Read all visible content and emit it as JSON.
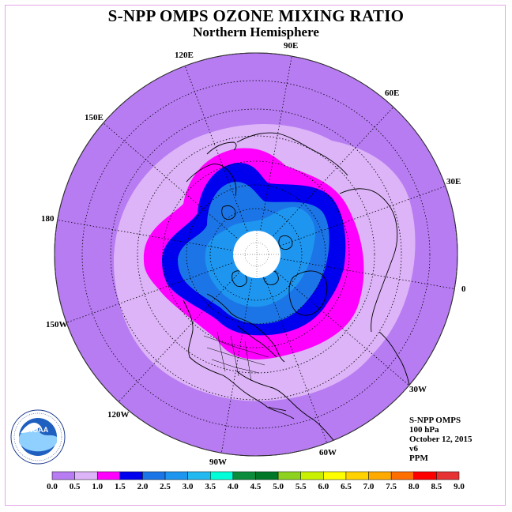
{
  "title": "S-NPP OMPS OZONE MIXING RATIO",
  "subtitle": "Northern Hemisphere",
  "longitude_labels": [
    "120E",
    "90E",
    "60E",
    "150E",
    "30E",
    "180",
    "0",
    "150W",
    "30W",
    "120W",
    "60W",
    "90W"
  ],
  "info": {
    "instrument": "S-NPP OMPS",
    "level": "100 hPa",
    "date": "October 12, 2015",
    "version": "v6",
    "units": "PPM"
  },
  "colorbar": {
    "ticks": [
      "0.0",
      "0.5",
      "1.0",
      "1.5",
      "2.0",
      "2.5",
      "3.0",
      "3.5",
      "4.0",
      "4.5",
      "5.0",
      "5.5",
      "6.0",
      "6.5",
      "7.0",
      "7.5",
      "8.0",
      "8.5",
      "9.0"
    ],
    "colors": [
      "#b77cf2",
      "#dcb4f7",
      "#ff00ff",
      "#0000ee",
      "#1c75e6",
      "#1e96f0",
      "#22b8f0",
      "#00ffd8",
      "#0a8c3c",
      "#007828",
      "#8cd21e",
      "#c8f000",
      "#ffff00",
      "#ffd200",
      "#ffaa00",
      "#ff6e00",
      "#ff0000",
      "#e63232",
      "#7a5030"
    ]
  },
  "logo_text": "NOAA"
}
